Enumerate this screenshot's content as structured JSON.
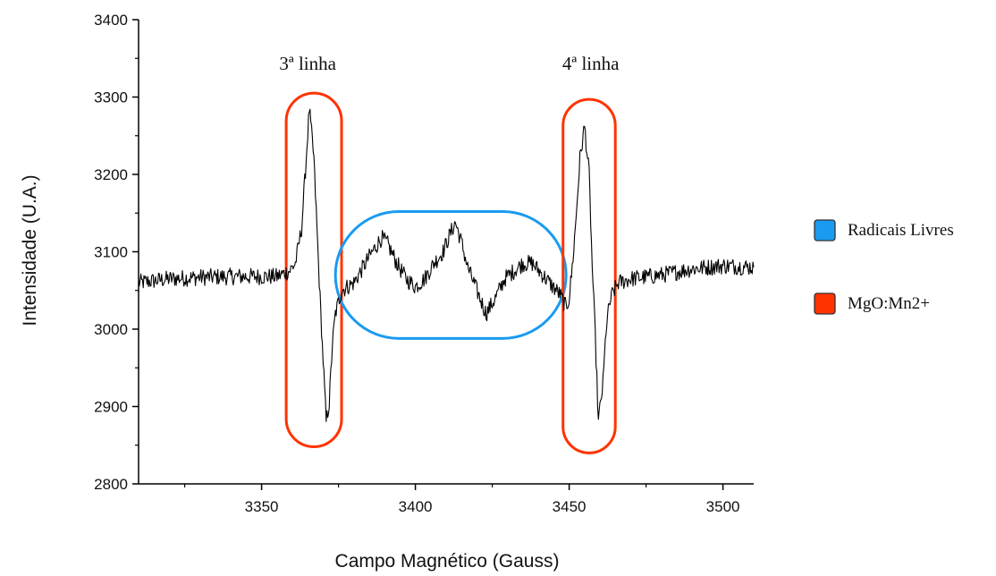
{
  "chart_data": {
    "type": "line",
    "xlabel": "Campo Magnético (Gauss)",
    "ylabel": "Intensidade (U.A.)",
    "xlim": [
      3310,
      3510
    ],
    "ylim": [
      2800,
      3400
    ],
    "x_ticks": [
      3350,
      3400,
      3450,
      3500
    ],
    "y_ticks": [
      2800,
      2900,
      3000,
      3100,
      3200,
      3300,
      3400
    ],
    "grid": false,
    "series": [
      {
        "color": "#000000",
        "points": [
          [
            3310,
            3060
          ],
          [
            3320,
            3065
          ],
          [
            3330,
            3067
          ],
          [
            3340,
            3068
          ],
          [
            3350,
            3068
          ],
          [
            3355,
            3068
          ],
          [
            3359,
            3075
          ],
          [
            3361,
            3085
          ],
          [
            3363,
            3130
          ],
          [
            3364.5,
            3220
          ],
          [
            3365.5,
            3285
          ],
          [
            3367,
            3220
          ],
          [
            3368,
            3130
          ],
          [
            3369,
            3040
          ],
          [
            3370,
            2960
          ],
          [
            3371,
            2880
          ],
          [
            3372,
            2905
          ],
          [
            3373,
            2980
          ],
          [
            3374,
            3020
          ],
          [
            3376,
            3050
          ],
          [
            3380,
            3060
          ],
          [
            3383,
            3080
          ],
          [
            3386,
            3100
          ],
          [
            3389,
            3118
          ],
          [
            3391,
            3110
          ],
          [
            3394,
            3085
          ],
          [
            3397,
            3065
          ],
          [
            3400,
            3055
          ],
          [
            3403,
            3065
          ],
          [
            3406,
            3085
          ],
          [
            3409,
            3100
          ],
          [
            3411,
            3120
          ],
          [
            3413,
            3138
          ],
          [
            3415,
            3112
          ],
          [
            3417,
            3080
          ],
          [
            3420,
            3050
          ],
          [
            3423,
            3020
          ],
          [
            3426,
            3040
          ],
          [
            3429,
            3065
          ],
          [
            3432,
            3075
          ],
          [
            3435,
            3085
          ],
          [
            3438,
            3085
          ],
          [
            3441,
            3072
          ],
          [
            3444,
            3058
          ],
          [
            3447,
            3045
          ],
          [
            3449,
            3028
          ],
          [
            3450,
            3040
          ],
          [
            3451,
            3080
          ],
          [
            3452,
            3130
          ],
          [
            3453.5,
            3220
          ],
          [
            3455,
            3262
          ],
          [
            3456.5,
            3200
          ],
          [
            3457.5,
            3080
          ],
          [
            3458.5,
            2990
          ],
          [
            3459.5,
            2880
          ],
          [
            3461,
            2930
          ],
          [
            3462,
            3000
          ],
          [
            3463,
            3030
          ],
          [
            3464,
            3045
          ],
          [
            3466,
            3060
          ],
          [
            3470,
            3065
          ],
          [
            3480,
            3070
          ],
          [
            3490,
            3078
          ],
          [
            3500,
            3082
          ],
          [
            3510,
            3080
          ]
        ]
      }
    ],
    "annotations": [
      {
        "text": "3ª linha",
        "x": 3365,
        "y": 3335
      },
      {
        "text": "4ª linha",
        "x": 3457,
        "y": 3335
      }
    ],
    "regions": [
      {
        "label": "MgO:Mn2+",
        "shape": "rounded-rect",
        "x0": 3358,
        "x1": 3376,
        "y0": 2848,
        "y1": 3305,
        "color": "#ff3300"
      },
      {
        "label": "Radicais Livres",
        "shape": "rounded-rect",
        "x0": 3374,
        "x1": 3449,
        "y0": 2988,
        "y1": 3152,
        "color": "#1a9bf0"
      },
      {
        "label": "MgO:Mn2+",
        "shape": "rounded-rect",
        "x0": 3448,
        "x1": 3465,
        "y0": 2840,
        "y1": 3297,
        "color": "#ff3300"
      }
    ],
    "legend": {
      "position": "right",
      "entries": [
        {
          "label": "Radicais Livres",
          "color": "#1a9bf0"
        },
        {
          "label": "MgO:Mn2+",
          "color": "#ff3300"
        }
      ]
    }
  }
}
